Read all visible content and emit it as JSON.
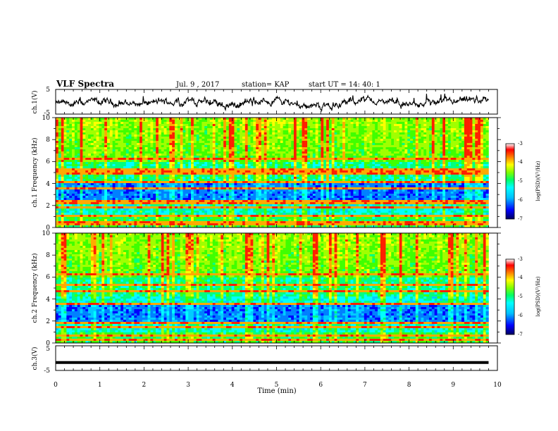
{
  "header": {
    "title": "VLF Spectra",
    "date": "Jul. 9 , 2017",
    "station": "station= KAP",
    "start": "start UT = 14: 40: 1"
  },
  "colors": {
    "spectrogram": [
      "#00008b",
      "#0000ff",
      "#00bfff",
      "#00ffff",
      "#00ff7f",
      "#7fff00",
      "#ffff00",
      "#ffa500",
      "#ff0000",
      "#ffffff"
    ]
  },
  "chart_data": [
    {
      "type": "line",
      "panel": "ch1",
      "ylabel": "ch.1(V)",
      "yticks": [
        "5",
        "-5"
      ],
      "ylim": [
        -5,
        5
      ],
      "xlim": [
        0,
        10
      ],
      "series": [
        {
          "x": [
            0,
            1,
            2,
            3,
            4,
            5,
            6,
            7,
            8,
            9,
            9.8
          ],
          "y": [
            -1.0,
            -0.3,
            -0.6,
            0.3,
            -1.2,
            0.6,
            -2.0,
            0.8,
            -1.2,
            -0.6,
            0.9
          ]
        }
      ]
    },
    {
      "type": "heatmap",
      "panel": "ch1-spectrogram",
      "ylabel": "ch.1 Frequency (kHz)",
      "yticks": [
        "0",
        "2",
        "4",
        "6",
        "8",
        "10"
      ],
      "ylim": [
        0,
        10
      ],
      "xlim": [
        0,
        10
      ],
      "colorbar": {
        "label": "log(PSD)(V²/Hz)",
        "ticks": [
          "-3",
          "-4",
          "-5",
          "-6",
          "-7"
        ],
        "range": [
          -7,
          -3
        ]
      },
      "bands_khz": [
        0.2,
        0.5,
        1.0,
        1.8,
        2.2,
        2.4,
        3.5,
        4.2,
        5.0,
        5.3,
        6.3
      ]
    },
    {
      "type": "heatmap",
      "panel": "ch2-spectrogram",
      "ylabel": "ch.2 Frequency (kHz)",
      "yticks": [
        "0",
        "2",
        "4",
        "6",
        "8",
        "10"
      ],
      "ylim": [
        0,
        10
      ],
      "xlim": [
        0,
        10
      ],
      "colorbar": {
        "label": "log(PSD)(V²/Hz)",
        "ticks": [
          "-3",
          "-4",
          "-5",
          "-6",
          "-7"
        ],
        "range": [
          -7,
          -3
        ]
      },
      "bands_khz": [
        0.2,
        0.6,
        1.4,
        1.9,
        3.6,
        4.8,
        5.2,
        6.3
      ]
    },
    {
      "type": "line",
      "panel": "ch3",
      "ylabel": "ch.3(V)",
      "yticks": [
        "5",
        "-5"
      ],
      "ylim": [
        -5,
        5
      ],
      "xlim": [
        0,
        10
      ],
      "series": [
        {
          "x": [
            0,
            9.8
          ],
          "y": [
            -1.8,
            -1.8
          ]
        }
      ]
    }
  ],
  "xaxis": {
    "label": "Time (min)",
    "ticks": [
      "0",
      "1",
      "2",
      "3",
      "4",
      "5",
      "6",
      "7",
      "8",
      "9",
      "10"
    ]
  }
}
